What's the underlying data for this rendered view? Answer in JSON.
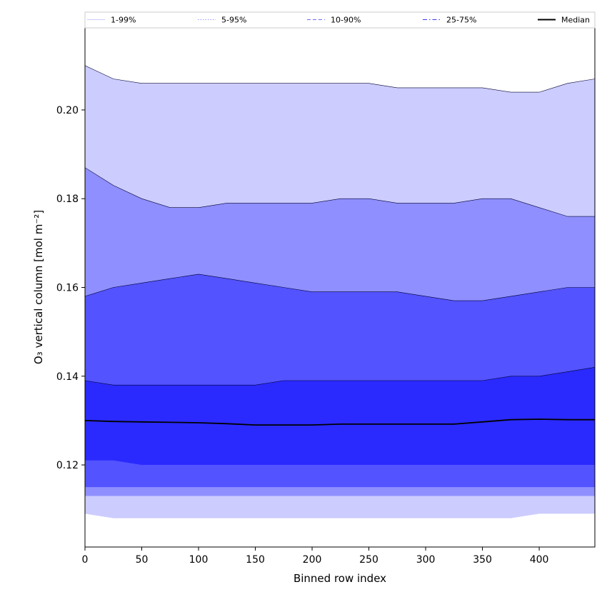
{
  "chart_data": {
    "type": "area",
    "xlabel": "Binned row index",
    "ylabel": "O₃ vertical column [mol m⁻²]",
    "xlim": [
      0,
      449
    ],
    "ylim": [
      0.1015,
      0.2185
    ],
    "x_ticks": [
      {
        "value": 0,
        "label": "0"
      },
      {
        "value": 50,
        "label": "50"
      },
      {
        "value": 100,
        "label": "100"
      },
      {
        "value": 150,
        "label": "150"
      },
      {
        "value": 200,
        "label": "200"
      },
      {
        "value": 250,
        "label": "250"
      },
      {
        "value": 300,
        "label": "300"
      },
      {
        "value": 350,
        "label": "350"
      },
      {
        "value": 400,
        "label": "400"
      }
    ],
    "y_ticks": [
      {
        "value": 0.12,
        "label": "0.12"
      },
      {
        "value": 0.14,
        "label": "0.14"
      },
      {
        "value": 0.16,
        "label": "0.16"
      },
      {
        "value": 0.18,
        "label": "0.18"
      },
      {
        "value": 0.2,
        "label": "0.20"
      }
    ],
    "grid": false,
    "legend_position": "top",
    "x": [
      0,
      25,
      50,
      75,
      100,
      125,
      150,
      175,
      200,
      225,
      250,
      275,
      300,
      325,
      350,
      375,
      400,
      425,
      449
    ],
    "series": [
      {
        "name": "1-99%",
        "color": "#ccccff",
        "line_color": "#ccccff",
        "dash": "solid",
        "upper": [
          0.21,
          0.207,
          0.206,
          0.206,
          0.206,
          0.206,
          0.206,
          0.206,
          0.206,
          0.206,
          0.206,
          0.205,
          0.205,
          0.205,
          0.205,
          0.204,
          0.204,
          0.206,
          0.207
        ],
        "lower": [
          0.109,
          0.108,
          0.108,
          0.108,
          0.108,
          0.108,
          0.108,
          0.108,
          0.108,
          0.108,
          0.108,
          0.108,
          0.108,
          0.108,
          0.108,
          0.108,
          0.109,
          0.109,
          0.109
        ]
      },
      {
        "name": "5-95%",
        "color": "#8f8fff",
        "line_color": "#9999ff",
        "dash": "dotted",
        "upper": [
          0.187,
          0.183,
          0.18,
          0.178,
          0.178,
          0.179,
          0.179,
          0.179,
          0.179,
          0.18,
          0.18,
          0.179,
          0.179,
          0.179,
          0.18,
          0.18,
          0.178,
          0.176,
          0.176
        ],
        "lower": [
          0.113,
          0.113,
          0.113,
          0.113,
          0.113,
          0.113,
          0.113,
          0.113,
          0.113,
          0.113,
          0.113,
          0.113,
          0.113,
          0.113,
          0.113,
          0.113,
          0.113,
          0.113,
          0.113
        ]
      },
      {
        "name": "10-90%",
        "color": "#5353ff",
        "line_color": "#6b6bff",
        "dash": "dashed",
        "upper": [
          0.158,
          0.16,
          0.161,
          0.162,
          0.163,
          0.162,
          0.161,
          0.16,
          0.159,
          0.159,
          0.159,
          0.159,
          0.158,
          0.157,
          0.157,
          0.158,
          0.159,
          0.16,
          0.16
        ],
        "lower": [
          0.115,
          0.115,
          0.115,
          0.115,
          0.115,
          0.115,
          0.115,
          0.115,
          0.115,
          0.115,
          0.115,
          0.115,
          0.115,
          0.115,
          0.115,
          0.115,
          0.115,
          0.115,
          0.115
        ]
      },
      {
        "name": "25-75%",
        "color": "#2a2aff",
        "line_color": "#3a3aff",
        "dash": "dashdot",
        "upper": [
          0.139,
          0.138,
          0.138,
          0.138,
          0.138,
          0.138,
          0.138,
          0.139,
          0.139,
          0.139,
          0.139,
          0.139,
          0.139,
          0.139,
          0.139,
          0.14,
          0.14,
          0.141,
          0.142
        ],
        "lower": [
          0.121,
          0.121,
          0.12,
          0.12,
          0.12,
          0.12,
          0.12,
          0.12,
          0.12,
          0.12,
          0.12,
          0.12,
          0.12,
          0.12,
          0.12,
          0.12,
          0.12,
          0.12,
          0.12
        ]
      },
      {
        "name": "Median",
        "color": "#000000",
        "line_color": "#000000",
        "dash": "solid",
        "values": [
          0.13,
          0.1298,
          0.1297,
          0.1296,
          0.1295,
          0.1293,
          0.129,
          0.129,
          0.129,
          0.1292,
          0.1292,
          0.1292,
          0.1292,
          0.1292,
          0.1297,
          0.1302,
          0.1303,
          0.1302,
          0.1302
        ]
      }
    ]
  }
}
